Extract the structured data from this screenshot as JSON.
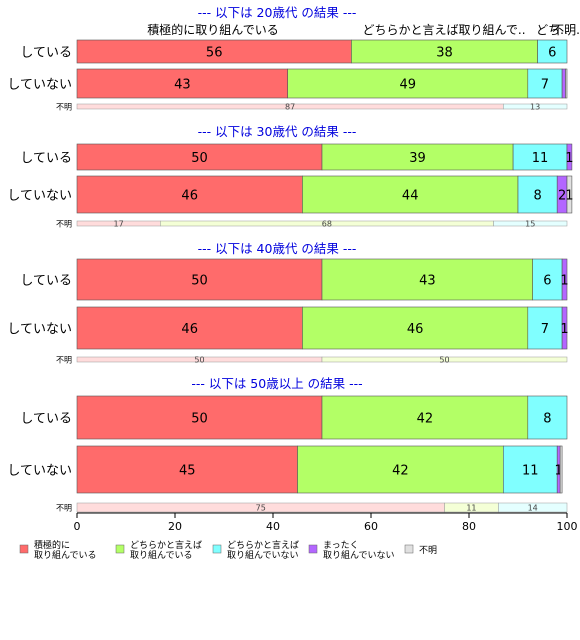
{
  "chart_data": {
    "type": "bar",
    "orientation": "horizontal",
    "stacked": true,
    "xlim": [
      0,
      100
    ],
    "x_ticks": [
      "0",
      "20",
      "40",
      "60",
      "80",
      "100"
    ],
    "colors": {
      "積極的に取り組んでいる": "#ff6b6b",
      "どちらかと言えば取り組んでいる": "#b3ff66",
      "どちらかと言えば取り組んでいない": "#80ffff",
      "まったく取り組んでいない": "#b366ff",
      "不明": "#e0e0e0"
    },
    "top_category_labels": [
      "積極的に取り組んでいる",
      "どちらかと言えば取り組んで..",
      "どち..",
      "不明."
    ],
    "legend": [
      {
        "line1": "積極的に",
        "line2": "取り組んでいる",
        "color": "#ff6b6b"
      },
      {
        "line1": "どちらかと言えば",
        "line2": "取り組んでいる",
        "color": "#b3ff66"
      },
      {
        "line1": "どちらかと言えば",
        "line2": "取り組んでいない",
        "color": "#80ffff"
      },
      {
        "line1": "まったく",
        "line2": "取り組んでいない",
        "color": "#b366ff"
      },
      {
        "line1": "不明",
        "line2": "",
        "color": "#e0e0e0"
      }
    ],
    "panels": [
      {
        "title": "--- 以下は 20歳代 の結果 ---",
        "rows": [
          {
            "label": "している",
            "values": [
              56,
              38,
              6,
              0,
              0
            ],
            "labels": [
              "56",
              "38",
              "6",
              "",
              ""
            ]
          },
          {
            "label": "していない",
            "values": [
              43,
              49,
              7,
              0.7,
              0.3
            ],
            "labels": [
              "43",
              "49",
              "7",
              "",
              ""
            ]
          }
        ],
        "unknown": {
          "label": "不明",
          "values": [
            87,
            0,
            13,
            0,
            0
          ],
          "labels": [
            "87",
            "",
            "13",
            "",
            ""
          ]
        }
      },
      {
        "title": "--- 以下は 30歳代 の結果 ---",
        "rows": [
          {
            "label": "している",
            "values": [
              50,
              39,
              11,
              1,
              0
            ],
            "labels": [
              "50",
              "39",
              "11",
              "1",
              ""
            ]
          },
          {
            "label": "していない",
            "values": [
              46,
              44,
              8,
              2,
              1
            ],
            "labels": [
              "46",
              "44",
              "8",
              "2",
              "1"
            ]
          }
        ],
        "unknown": {
          "label": "不明",
          "values": [
            17,
            68,
            15,
            0,
            0
          ],
          "labels": [
            "17",
            "68",
            "15",
            "",
            ""
          ]
        }
      },
      {
        "title": "--- 以下は 40歳代 の結果 ---",
        "rows": [
          {
            "label": "している",
            "values": [
              50,
              43,
              6,
              1,
              0
            ],
            "labels": [
              "50",
              "43",
              "6",
              "1",
              ""
            ]
          },
          {
            "label": "していない",
            "values": [
              46,
              46,
              7,
              1,
              0
            ],
            "labels": [
              "46",
              "46",
              "7",
              "1",
              ""
            ]
          }
        ],
        "unknown": {
          "label": "不明",
          "values": [
            50,
            50,
            0,
            0,
            0
          ],
          "labels": [
            "50",
            "50",
            "",
            "",
            ""
          ]
        }
      },
      {
        "title": "--- 以下は 50歳以上 の結果 ---",
        "rows": [
          {
            "label": "している",
            "values": [
              50,
              42,
              8,
              0,
              0
            ],
            "labels": [
              "50",
              "42",
              "8",
              "",
              ""
            ]
          },
          {
            "label": "していない",
            "values": [
              45,
              42,
              11,
              0.6,
              0.4
            ],
            "labels": [
              "45",
              "42",
              "11",
              "1",
              ""
            ]
          }
        ],
        "unknown": {
          "label": "不明",
          "values": [
            75,
            11,
            14,
            0,
            0
          ],
          "labels": [
            "75",
            "11",
            "14",
            "",
            ""
          ]
        }
      }
    ]
  }
}
